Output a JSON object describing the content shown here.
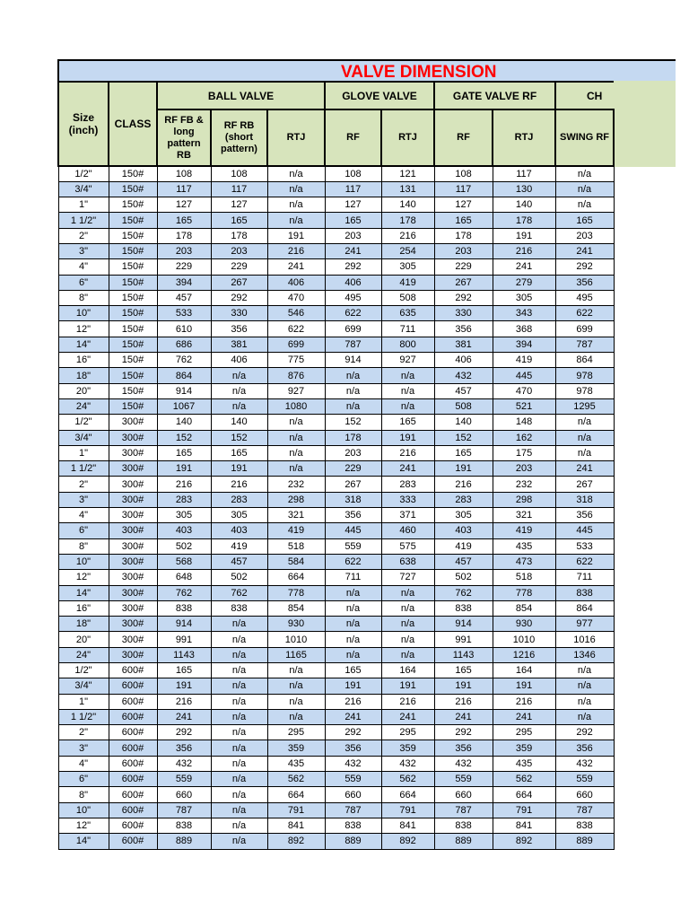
{
  "title": "VALVE DIMENSION",
  "colors": {
    "title_bg": "#c5d9f1",
    "title_text": "#ff0000",
    "header_bg": "#d7e4bc",
    "row_stripe_bg": "#c5d9f1",
    "border": "#000000"
  },
  "table": {
    "headers": {
      "size": "Size (inch)",
      "class": "CLASS",
      "groups": [
        {
          "label": "BALL VALVE",
          "span": 3
        },
        {
          "label": "GLOVE VALVE",
          "span": 2
        },
        {
          "label": "GATE VALVE RF",
          "span": 2
        },
        {
          "label": "CH",
          "span": 1
        }
      ],
      "sub": [
        "RF FB & long pattern RB",
        "RF RB (short pattern)",
        "RTJ",
        "RF",
        "RTJ",
        "RF",
        "RTJ",
        "SWING RF"
      ]
    },
    "rows": [
      [
        "1/2\"",
        "150#",
        "108",
        "108",
        "n/a",
        "108",
        "121",
        "108",
        "117",
        "n/a"
      ],
      [
        "3/4\"",
        "150#",
        "117",
        "117",
        "n/a",
        "117",
        "131",
        "117",
        "130",
        "n/a"
      ],
      [
        "1\"",
        "150#",
        "127",
        "127",
        "n/a",
        "127",
        "140",
        "127",
        "140",
        "n/a"
      ],
      [
        "1 1/2\"",
        "150#",
        "165",
        "165",
        "n/a",
        "165",
        "178",
        "165",
        "178",
        "165"
      ],
      [
        "2\"",
        "150#",
        "178",
        "178",
        "191",
        "203",
        "216",
        "178",
        "191",
        "203"
      ],
      [
        "3\"",
        "150#",
        "203",
        "203",
        "216",
        "241",
        "254",
        "203",
        "216",
        "241"
      ],
      [
        "4\"",
        "150#",
        "229",
        "229",
        "241",
        "292",
        "305",
        "229",
        "241",
        "292"
      ],
      [
        "6\"",
        "150#",
        "394",
        "267",
        "406",
        "406",
        "419",
        "267",
        "279",
        "356"
      ],
      [
        "8\"",
        "150#",
        "457",
        "292",
        "470",
        "495",
        "508",
        "292",
        "305",
        "495"
      ],
      [
        "10\"",
        "150#",
        "533",
        "330",
        "546",
        "622",
        "635",
        "330",
        "343",
        "622"
      ],
      [
        "12\"",
        "150#",
        "610",
        "356",
        "622",
        "699",
        "711",
        "356",
        "368",
        "699"
      ],
      [
        "14\"",
        "150#",
        "686",
        "381",
        "699",
        "787",
        "800",
        "381",
        "394",
        "787"
      ],
      [
        "16\"",
        "150#",
        "762",
        "406",
        "775",
        "914",
        "927",
        "406",
        "419",
        "864"
      ],
      [
        "18\"",
        "150#",
        "864",
        "n/a",
        "876",
        "n/a",
        "n/a",
        "432",
        "445",
        "978"
      ],
      [
        "20\"",
        "150#",
        "914",
        "n/a",
        "927",
        "n/a",
        "n/a",
        "457",
        "470",
        "978"
      ],
      [
        "24\"",
        "150#",
        "1067",
        "n/a",
        "1080",
        "n/a",
        "n/a",
        "508",
        "521",
        "1295"
      ],
      [
        "1/2\"",
        "300#",
        "140",
        "140",
        "n/a",
        "152",
        "165",
        "140",
        "148",
        "n/a"
      ],
      [
        "3/4\"",
        "300#",
        "152",
        "152",
        "n/a",
        "178",
        "191",
        "152",
        "162",
        "n/a"
      ],
      [
        "1\"",
        "300#",
        "165",
        "165",
        "n/a",
        "203",
        "216",
        "165",
        "175",
        "n/a"
      ],
      [
        "1 1/2\"",
        "300#",
        "191",
        "191",
        "n/a",
        "229",
        "241",
        "191",
        "203",
        "241"
      ],
      [
        "2\"",
        "300#",
        "216",
        "216",
        "232",
        "267",
        "283",
        "216",
        "232",
        "267"
      ],
      [
        "3\"",
        "300#",
        "283",
        "283",
        "298",
        "318",
        "333",
        "283",
        "298",
        "318"
      ],
      [
        "4\"",
        "300#",
        "305",
        "305",
        "321",
        "356",
        "371",
        "305",
        "321",
        "356"
      ],
      [
        "6\"",
        "300#",
        "403",
        "403",
        "419",
        "445",
        "460",
        "403",
        "419",
        "445"
      ],
      [
        "8\"",
        "300#",
        "502",
        "419",
        "518",
        "559",
        "575",
        "419",
        "435",
        "533"
      ],
      [
        "10\"",
        "300#",
        "568",
        "457",
        "584",
        "622",
        "638",
        "457",
        "473",
        "622"
      ],
      [
        "12\"",
        "300#",
        "648",
        "502",
        "664",
        "711",
        "727",
        "502",
        "518",
        "711"
      ],
      [
        "14\"",
        "300#",
        "762",
        "762",
        "778",
        "n/a",
        "n/a",
        "762",
        "778",
        "838"
      ],
      [
        "16\"",
        "300#",
        "838",
        "838",
        "854",
        "n/a",
        "n/a",
        "838",
        "854",
        "864"
      ],
      [
        "18\"",
        "300#",
        "914",
        "n/a",
        "930",
        "n/a",
        "n/a",
        "914",
        "930",
        "977"
      ],
      [
        "20\"",
        "300#",
        "991",
        "n/a",
        "1010",
        "n/a",
        "n/a",
        "991",
        "1010",
        "1016"
      ],
      [
        "24\"",
        "300#",
        "1143",
        "n/a",
        "1165",
        "n/a",
        "n/a",
        "1143",
        "1216",
        "1346"
      ],
      [
        "1/2\"",
        "600#",
        "165",
        "n/a",
        "n/a",
        "165",
        "164",
        "165",
        "164",
        "n/a"
      ],
      [
        "3/4\"",
        "600#",
        "191",
        "n/a",
        "n/a",
        "191",
        "191",
        "191",
        "191",
        "n/a"
      ],
      [
        "1\"",
        "600#",
        "216",
        "n/a",
        "n/a",
        "216",
        "216",
        "216",
        "216",
        "n/a"
      ],
      [
        "1 1/2\"",
        "600#",
        "241",
        "n/a",
        "n/a",
        "241",
        "241",
        "241",
        "241",
        "n/a"
      ],
      [
        "2\"",
        "600#",
        "292",
        "n/a",
        "295",
        "292",
        "295",
        "292",
        "295",
        "292"
      ],
      [
        "3\"",
        "600#",
        "356",
        "n/a",
        "359",
        "356",
        "359",
        "356",
        "359",
        "356"
      ],
      [
        "4\"",
        "600#",
        "432",
        "n/a",
        "435",
        "432",
        "432",
        "432",
        "435",
        "432"
      ],
      [
        "6\"",
        "600#",
        "559",
        "n/a",
        "562",
        "559",
        "562",
        "559",
        "562",
        "559"
      ],
      [
        "8\"",
        "600#",
        "660",
        "n/a",
        "664",
        "660",
        "664",
        "660",
        "664",
        "660"
      ],
      [
        "10\"",
        "600#",
        "787",
        "n/a",
        "791",
        "787",
        "791",
        "787",
        "791",
        "787"
      ],
      [
        "12\"",
        "600#",
        "838",
        "n/a",
        "841",
        "838",
        "841",
        "838",
        "841",
        "838"
      ],
      [
        "14\"",
        "600#",
        "889",
        "n/a",
        "892",
        "889",
        "892",
        "889",
        "892",
        "889"
      ]
    ]
  }
}
